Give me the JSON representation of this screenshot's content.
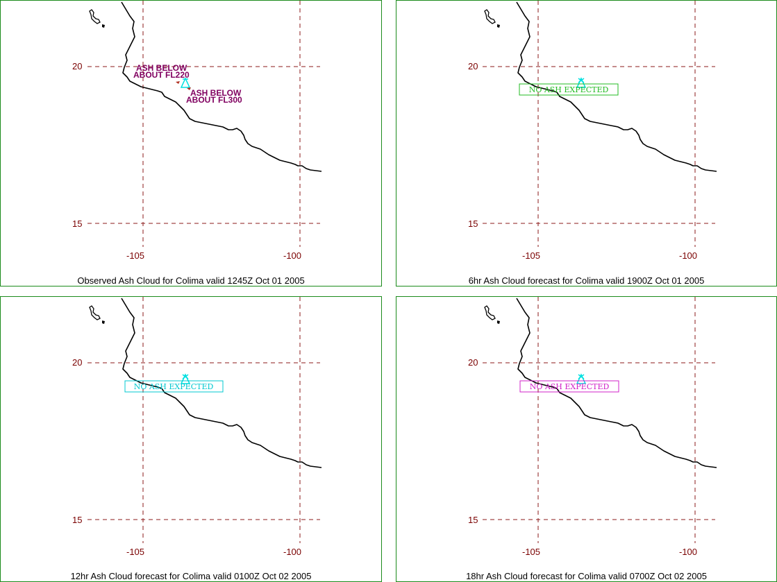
{
  "map": {
    "lon_ticks": [
      "-105",
      "-100"
    ],
    "lat_ticks": [
      "20",
      "15"
    ]
  },
  "panels": [
    {
      "caption": "Observed Ash Cloud for Colima valid 1245Z Oct 01 2005",
      "labels": [
        "ASH BELOW",
        "ABOUT FL220",
        "ASH BELOW",
        "ABOUT FL300"
      ]
    },
    {
      "caption": "6hr Ash Cloud forecast for Colima valid 1900Z Oct 01 2005",
      "box_text": "NO ASH EXPECTED",
      "box_color": "#22bb22"
    },
    {
      "caption": "12hr Ash Cloud forecast for Colima valid 0100Z Oct 02 2005",
      "box_text": "NO ASH EXPECTED",
      "box_color": "#00c8d0"
    },
    {
      "caption": "18hr Ash Cloud forecast for Colima valid 0700Z Oct 02 2005",
      "box_text": "NO ASH EXPECTED",
      "box_color": "#d020c8"
    }
  ],
  "colors": {
    "grid": "#8b1a1a",
    "tick": "#7a0000",
    "coast": "#000000",
    "volcano": "#00e0e0",
    "ash_label": "#800060",
    "panel_border": "#1a8a1a"
  },
  "icons": {
    "volcano": "volcano-triangle-icon"
  }
}
